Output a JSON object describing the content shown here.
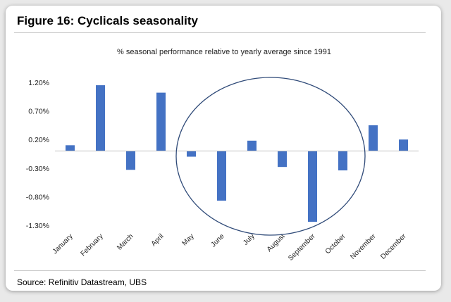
{
  "figure_title": "Figure 16: Cyclicals seasonality",
  "source": "Source: Refinitiv Datastream, UBS",
  "chart_data": {
    "type": "bar",
    "title": "% seasonal performance relative to yearly average  since 1991",
    "categories": [
      "January",
      "February",
      "March",
      "April",
      "May",
      "June",
      "July",
      "August",
      "September",
      "October",
      "November",
      "December"
    ],
    "values": [
      0.1,
      1.15,
      -0.33,
      1.02,
      -0.1,
      -0.87,
      0.18,
      -0.28,
      -1.24,
      -0.34,
      0.45,
      0.2
    ],
    "yticks": [
      "1.20%",
      "0.70%",
      "0.20%",
      "-0.30%",
      "-0.80%",
      "-1.30%"
    ],
    "ytick_values": [
      1.2,
      0.7,
      0.2,
      -0.3,
      -0.8,
      -1.3
    ],
    "ylim": [
      -1.3,
      1.2
    ],
    "bar_color": "#4472C4",
    "annotation": "circle highlighting May through October"
  }
}
